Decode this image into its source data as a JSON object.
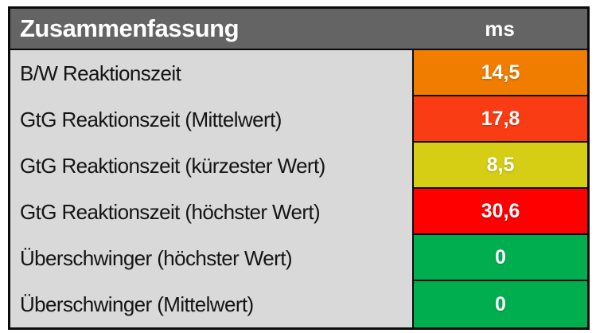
{
  "chart_data": {
    "type": "table",
    "title": "Zusammenfassung",
    "unit_label": "ms",
    "columns": [
      "Zusammenfassung",
      "ms"
    ],
    "rows": [
      {
        "label": "B/W Reaktionszeit",
        "value": "14,5",
        "value_ms": 14.5,
        "cell_color": "#F07C00"
      },
      {
        "label": "GtG Reaktionszeit (Mittelwert)",
        "value": "17,8",
        "value_ms": 17.8,
        "cell_color": "#FA3C14"
      },
      {
        "label": "GtG Reaktionszeit (kürzester Wert)",
        "value": "8,5",
        "value_ms": 8.5,
        "cell_color": "#D6CE15"
      },
      {
        "label": "GtG Reaktionszeit (höchster Wert)",
        "value": "30,6",
        "value_ms": 30.6,
        "cell_color": "#FE0000"
      },
      {
        "label": "Überschwinger (höchster Wert)",
        "value": "0",
        "value_ms": 0,
        "cell_color": "#00AE50"
      },
      {
        "label": "Überschwinger (Mittelwert)",
        "value": "0",
        "value_ms": 0,
        "cell_color": "#00AE50"
      }
    ]
  },
  "colors": {
    "page_bg": "#FFFFFF",
    "header_bg": "#646464",
    "header_text": "#FFFFFF",
    "label_bg": "#D9D9D9",
    "label_text": "#141414",
    "value_text": "#FFFFFF",
    "border": "#0B0B0B"
  }
}
